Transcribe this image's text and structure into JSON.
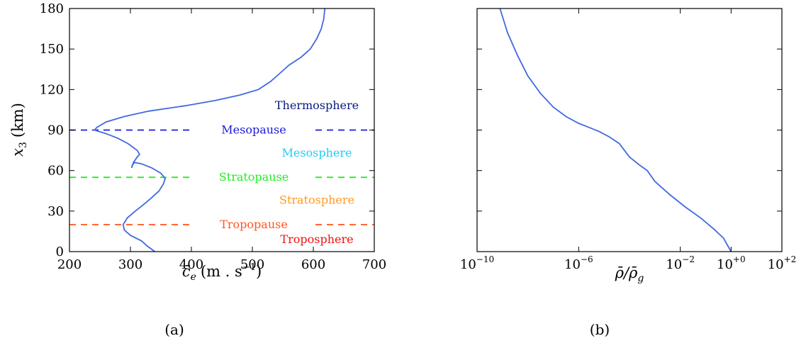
{
  "chart_data": [
    {
      "panel": "(a)",
      "type": "line",
      "xlabel_text": "c̄",
      "xlabel_sub": "e",
      "xlabel_unit": "(m . s",
      "xlabel_exp": "−1",
      "xlabel_close": ")",
      "ylabel_text": "x",
      "ylabel_sub": "3",
      "ylabel_unit": "(km)",
      "xlim": [
        200,
        700
      ],
      "ylim": [
        0,
        180
      ],
      "xticks": [
        "200",
        "300",
        "400",
        "500",
        "600",
        "700"
      ],
      "yticks": [
        "0",
        "30",
        "60",
        "90",
        "120",
        "150",
        "180"
      ],
      "series": [
        {
          "color": "#4169e1",
          "x": [
            340,
            328,
            318,
            300,
            290,
            288,
            295,
            308,
            322,
            335,
            347,
            354,
            357,
            350,
            335,
            318,
            307,
            303,
            302,
            305,
            311,
            315,
            311,
            296,
            279,
            262,
            248,
            241,
            245,
            260,
            290,
            330,
            390,
            440,
            480,
            510,
            530,
            545,
            560,
            580,
            595,
            606,
            613,
            617,
            619
          ],
          "y": [
            0,
            4,
            8,
            12,
            16,
            20,
            25,
            30,
            35,
            40,
            45,
            50,
            54,
            58,
            62,
            65,
            66,
            64,
            62,
            66,
            70,
            72,
            75,
            80,
            84,
            87,
            89,
            90,
            92,
            96,
            100,
            104,
            108,
            112,
            116,
            120,
            126,
            132,
            138,
            144,
            150,
            158,
            165,
            172,
            180
          ]
        }
      ],
      "levels": [
        {
          "name": "Mesopause",
          "y": 90,
          "color": "#1a1adb"
        },
        {
          "name": "Stratopause",
          "y": 55,
          "color": "#22ee22"
        },
        {
          "name": "Tropopause",
          "y": 20,
          "color": "#ff5522"
        }
      ],
      "regions": [
        {
          "name": "Thermosphere",
          "y": 108,
          "color": "#0a1a80"
        },
        {
          "name": "Mesosphere",
          "y": 73,
          "color": "#22ccee"
        },
        {
          "name": "Stratosphere",
          "y": 38,
          "color": "#ff9922"
        },
        {
          "name": "Troposphere",
          "y": 9,
          "color": "#ee1111"
        }
      ]
    },
    {
      "panel": "(b)",
      "type": "line",
      "xscale": "log",
      "xlabel_text": "ρ̄/ρ̄",
      "xlabel_sub": "g",
      "xlim_log10": [
        -10,
        2
      ],
      "ylim": [
        0,
        180
      ],
      "xticks": [
        {
          "base": "10",
          "exp": "−10",
          "log": -10
        },
        {
          "base": "10",
          "exp": "−6",
          "log": -6
        },
        {
          "base": "10",
          "exp": "−2",
          "log": -2
        },
        {
          "base": "10",
          "exp": "+0",
          "log": 0
        },
        {
          "base": "10",
          "exp": "+2",
          "log": 2
        }
      ],
      "yticks_count": 7,
      "series": [
        {
          "color": "#4169e1",
          "log10x": [
            0,
            -0.3,
            -0.7,
            -1.2,
            -1.8,
            -2.4,
            -3.0,
            -3.3,
            -3.6,
            -4.0,
            -4.4,
            -4.8,
            -5.2,
            -5.6,
            -6.0,
            -6.5,
            -7.0,
            -7.5,
            -8.0,
            -8.4,
            -8.8,
            -9.1
          ],
          "y": [
            0,
            10,
            17,
            25,
            33,
            42,
            52,
            60,
            64,
            70,
            80,
            85,
            89,
            92,
            95,
            100,
            107,
            117,
            130,
            145,
            162,
            180
          ]
        }
      ]
    }
  ]
}
